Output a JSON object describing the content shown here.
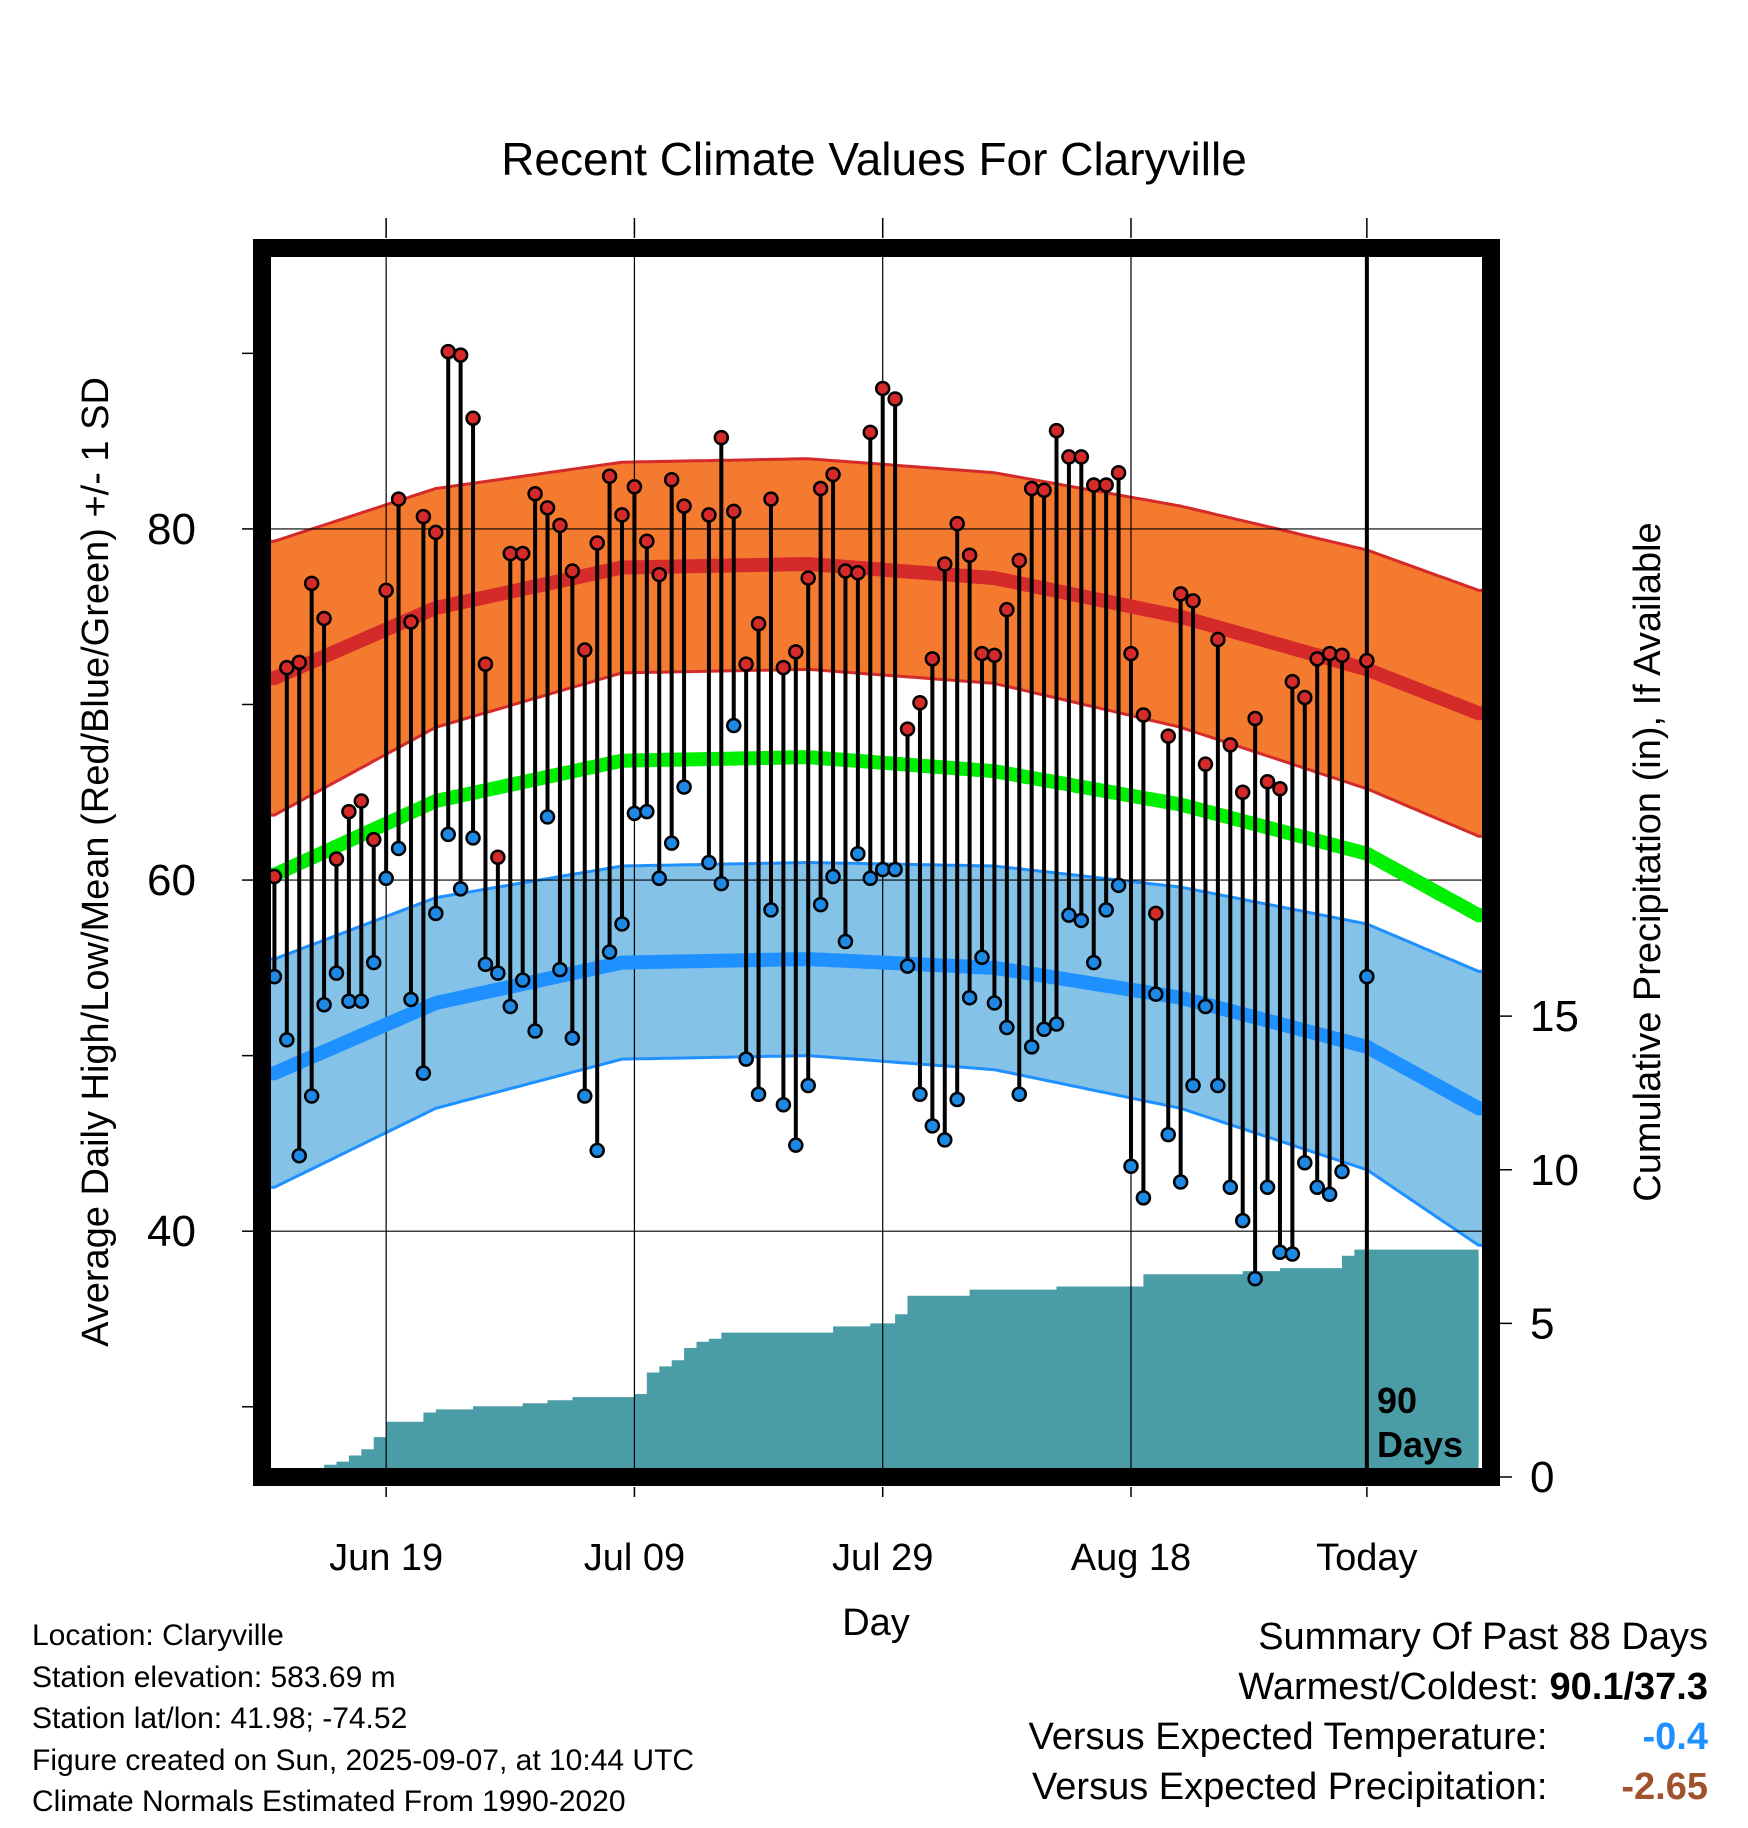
{
  "chart_data": {
    "type": "line",
    "title": "Recent Climate Values For Claryville",
    "xlabel": "Day",
    "ylabel": "Average Daily High/Low/Mean (Red/Blue/Green) +/- 1 SD",
    "y2label": "Cumulative Precipitation (in), If Available",
    "ylim": [
      26,
      96
    ],
    "y2lim": [
      0,
      40
    ],
    "xlim": [
      -89,
      10
    ],
    "yticks": [
      "40",
      "60",
      "80"
    ],
    "y2ticks": [
      "0",
      "5",
      "10",
      "15"
    ],
    "xticks": [
      {
        "day": -79,
        "label": "Jun 19"
      },
      {
        "day": -59,
        "label": "Jul 09"
      },
      {
        "day": -39,
        "label": "Jul 29"
      },
      {
        "day": -19,
        "label": "Aug 18"
      },
      {
        "day": 0,
        "label": "Today"
      }
    ],
    "day_window_label": [
      "90",
      "Days"
    ],
    "normals": {
      "days": [
        -88,
        -75,
        -60,
        -45,
        -30,
        -15,
        0,
        9
      ],
      "high_mean": [
        71.5,
        75.5,
        77.8,
        78.0,
        77.2,
        75.0,
        72.0,
        69.5
      ],
      "high_sd": [
        7.8,
        6.8,
        6.0,
        6.0,
        6.0,
        6.3,
        6.8,
        7.0
      ],
      "mean": [
        60.3,
        64.5,
        66.8,
        67.0,
        66.2,
        64.3,
        61.5,
        58.0
      ],
      "low_mean": [
        49.0,
        53.0,
        55.3,
        55.5,
        55.0,
        53.3,
        50.5,
        47.0
      ],
      "low_sd": [
        6.5,
        6.0,
        5.5,
        5.5,
        5.8,
        6.3,
        7.0,
        7.8
      ]
    },
    "observations": {
      "days": [
        -88,
        -87,
        -86,
        -85,
        -84,
        -83,
        -82,
        -81,
        -80,
        -79,
        -78,
        -77,
        -76,
        -75,
        -74,
        -73,
        -72,
        -71,
        -70,
        -69,
        -68,
        -67,
        -66,
        -65,
        -64,
        -63,
        -62,
        -61,
        -60,
        -59,
        -58,
        -57,
        -56,
        -55,
        -53,
        -52,
        -51,
        -50,
        -49,
        -48,
        -47,
        -46,
        -45,
        -44,
        -43,
        -42,
        -41,
        -40,
        -39,
        -38,
        -37,
        -36,
        -35,
        -34,
        -33,
        -32,
        -31,
        -30,
        -29,
        -28,
        -27,
        -26,
        -25,
        -24,
        -23,
        -22,
        -21,
        -20,
        -19,
        -18,
        -17,
        -16,
        -15,
        -14,
        -13,
        -12,
        -11,
        -10,
        -9,
        -8,
        -7,
        -6,
        -5,
        -4,
        -3,
        -2,
        0
      ],
      "high": [
        60.2,
        72.1,
        72.4,
        76.9,
        74.9,
        61.2,
        63.9,
        64.5,
        62.3,
        76.5,
        81.7,
        74.7,
        80.7,
        79.8,
        90.1,
        89.9,
        86.3,
        72.3,
        61.3,
        78.6,
        78.6,
        82.0,
        81.2,
        80.2,
        77.6,
        73.1,
        79.2,
        83.0,
        80.8,
        82.4,
        79.3,
        77.4,
        82.8,
        81.3,
        80.8,
        85.2,
        81.0,
        72.3,
        74.6,
        81.7,
        72.1,
        73.0,
        77.2,
        82.3,
        83.1,
        77.6,
        77.5,
        85.5,
        88.0,
        87.4,
        68.6,
        70.1,
        72.6,
        78.0,
        80.3,
        78.5,
        72.9,
        72.8,
        75.4,
        78.2,
        82.3,
        82.2,
        85.6,
        84.1,
        84.1,
        82.5,
        82.5,
        83.2,
        72.9,
        69.4,
        58.1,
        68.2,
        76.3,
        75.9,
        66.6,
        73.7,
        67.7,
        65.0,
        69.2,
        65.6,
        65.2,
        71.3,
        70.4,
        72.6,
        72.9,
        72.8,
        72.5
      ],
      "low": [
        54.5,
        50.9,
        44.3,
        47.7,
        52.9,
        54.7,
        53.1,
        53.1,
        55.3,
        60.1,
        61.8,
        53.2,
        49.0,
        58.1,
        62.6,
        59.5,
        62.4,
        55.2,
        54.7,
        52.8,
        54.3,
        51.4,
        63.6,
        54.9,
        51.0,
        47.7,
        44.6,
        55.9,
        57.5,
        63.8,
        63.9,
        60.1,
        62.1,
        65.3,
        61.0,
        59.8,
        68.8,
        49.8,
        47.8,
        58.3,
        47.2,
        44.9,
        48.3,
        58.6,
        60.2,
        56.5,
        61.5,
        60.1,
        60.6,
        60.6,
        55.1,
        47.8,
        46.0,
        45.2,
        47.5,
        53.3,
        55.6,
        53.0,
        51.6,
        47.8,
        50.5,
        51.5,
        51.8,
        58.0,
        57.7,
        55.3,
        58.3,
        59.7,
        43.7,
        41.9,
        53.5,
        45.5,
        42.8,
        48.3,
        52.8,
        48.3,
        42.5,
        40.6,
        37.3,
        42.5,
        38.8,
        38.7,
        43.9,
        42.5,
        42.1,
        43.4,
        54.5
      ]
    },
    "precip_cumulative": {
      "days": [
        -88,
        -86,
        -84,
        -83,
        -82,
        -81,
        -80,
        -79,
        -78,
        -77,
        -76,
        -75,
        -72,
        -68,
        -66,
        -64,
        -59,
        -58,
        -57,
        -56,
        -55,
        -54,
        -53,
        -52,
        -48,
        -43,
        -42,
        -40,
        -39,
        -38,
        -37,
        -33,
        -32,
        -30,
        -25,
        -20,
        -19,
        -18,
        -17,
        -16,
        -10,
        -9,
        -8,
        -7,
        -6,
        -5,
        -4,
        -3,
        -2,
        -1,
        9
      ],
      "values": [
        0.1,
        0.2,
        0.4,
        0.5,
        0.7,
        0.9,
        1.3,
        1.8,
        1.8,
        1.8,
        2.1,
        2.2,
        2.3,
        2.4,
        2.5,
        2.6,
        2.7,
        3.4,
        3.6,
        3.8,
        4.2,
        4.4,
        4.5,
        4.7,
        4.7,
        4.9,
        4.9,
        5.0,
        5.0,
        5.3,
        5.9,
        5.9,
        6.1,
        6.1,
        6.2,
        6.2,
        6.2,
        6.6,
        6.6,
        6.6,
        6.7,
        6.7,
        6.7,
        6.8,
        6.8,
        6.8,
        6.8,
        6.8,
        7.2,
        7.4,
        7.4
      ]
    }
  },
  "footer": {
    "location": "Location: Claryville",
    "elevation": "Station elevation: 583.69 m",
    "latlon": "Station lat/lon: 41.98; -74.52",
    "created": "Figure created on Sun, 2025-09-07, at 10:44 UTC",
    "normals": "Climate Normals Estimated From 1990-2020"
  },
  "summary": {
    "title": "Summary Of Past 88 Days",
    "warmest_coldest_label": "Warmest/Coldest:",
    "warmest_coldest_value": "90.1/37.3",
    "temp_label": "Versus Expected Temperature:",
    "temp_value": "-0.4",
    "precip_label": "Versus Expected Precipitation:",
    "precip_value": "-2.65"
  },
  "colors": {
    "high_band": "#f47a30",
    "high_line": "#d42a2a",
    "mean_line": "#00ee00",
    "low_band": "#84c2e8",
    "low_line": "#1e90ff",
    "precip_fill": "#4a9ca6",
    "high_marker": "#d42a2a",
    "low_marker": "#1e88e5",
    "temp_dev": "#1e90ff",
    "precip_dev": "#a0522d"
  }
}
